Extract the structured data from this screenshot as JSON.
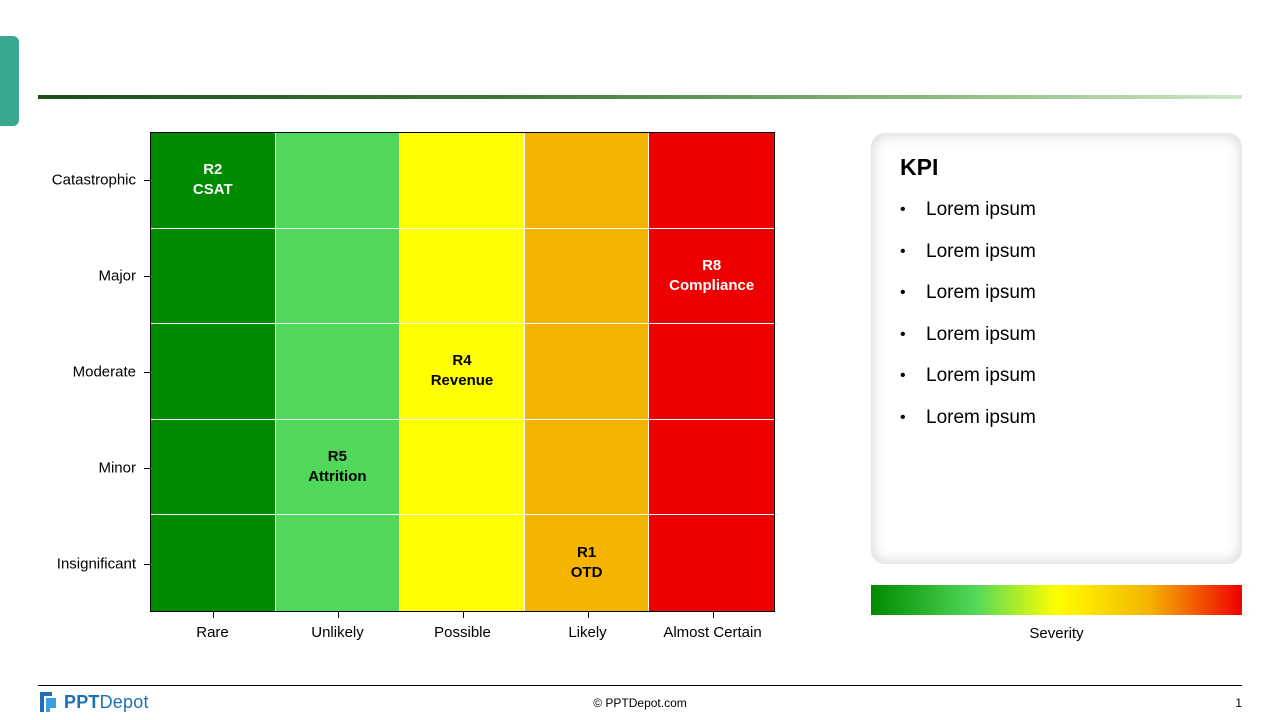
{
  "colors": {
    "accent_tab": "#3aa890",
    "col_rare": "#008a00",
    "col_unlikely": "#51d85a",
    "col_possible": "#ffff00",
    "col_likely": "#f5b400",
    "col_almost_certain": "#ee0000"
  },
  "chart_data": {
    "type": "heatmap",
    "x_categories": [
      "Rare",
      "Unlikely",
      "Possible",
      "Likely",
      "Almost Certain"
    ],
    "y_categories": [
      "Catastrophic",
      "Major",
      "Moderate",
      "Minor",
      "Insignificant"
    ],
    "column_colors": [
      "#008a00",
      "#51d85a",
      "#ffff00",
      "#f5b400",
      "#ee0000"
    ],
    "points": [
      {
        "id": "R2",
        "name": "CSAT",
        "x": "Rare",
        "y": "Catastrophic",
        "text_color": "#ffffff"
      },
      {
        "id": "R8",
        "name": "Compliance",
        "x": "Almost Certain",
        "y": "Major",
        "text_color": "#ffffff"
      },
      {
        "id": "R4",
        "name": "Revenue",
        "x": "Possible",
        "y": "Moderate",
        "text_color": "#000000"
      },
      {
        "id": "R5",
        "name": "Attrition",
        "x": "Unlikely",
        "y": "Minor",
        "text_color": "#000000"
      },
      {
        "id": "R1",
        "name": "OTD",
        "x": "Likely",
        "y": "Insignificant",
        "text_color": "#000000"
      }
    ],
    "legend": {
      "label": "Severity",
      "gradient": [
        "#008a00",
        "#51d85a",
        "#ffff00",
        "#f5b400",
        "#ee0000"
      ]
    }
  },
  "kpi": {
    "title": "KPI",
    "items": [
      "Lorem ipsum",
      "Lorem ipsum",
      "Lorem ipsum",
      "Lorem ipsum",
      "Lorem ipsum",
      "Lorem ipsum"
    ]
  },
  "footer": {
    "logo_bold": "PPT",
    "logo_light": "Depot",
    "copyright": "© PPTDepot.com",
    "page_number": "1"
  }
}
